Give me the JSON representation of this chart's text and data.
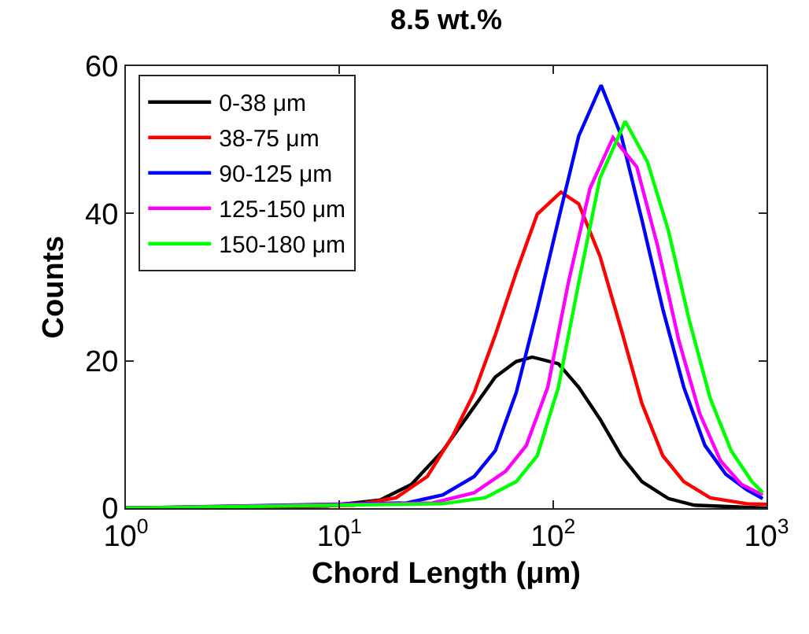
{
  "chart_data": {
    "type": "line",
    "title": "8.5 wt.%",
    "xlabel": "Chord Length (μm)",
    "ylabel": "Counts",
    "log": "x",
    "xlim": [
      1,
      1000
    ],
    "xticks": [
      {
        "value": 1,
        "label": "10$^{0}$"
      },
      {
        "value": 10,
        "label": "10$^{1}$"
      },
      {
        "value": 100,
        "label": "10$^{2}$"
      },
      {
        "value": 1000,
        "label": "10$^{3}$"
      }
    ],
    "ylim": [
      0,
      60
    ],
    "yticks": [
      0,
      20,
      40,
      60
    ],
    "legend": "top left",
    "marker": "none",
    "line_style": "solid",
    "series": [
      {
        "name": "0-38 μm",
        "color": "#000000",
        "x": [
          1,
          8.8,
          15.5,
          21.7,
          30.5,
          40.5,
          53.7,
          67.3,
          80,
          106,
          132,
          166,
          209,
          261,
          347,
          460,
          1000
        ],
        "values": [
          0,
          0.3,
          1.1,
          3.2,
          7.8,
          12.8,
          17.8,
          19.9,
          20.5,
          19.6,
          16.4,
          12.1,
          7.1,
          3.6,
          1.3,
          0.4,
          0
        ]
      },
      {
        "name": "38-75 μm",
        "color": "#ff0000",
        "x": [
          1,
          11.7,
          18.4,
          25.8,
          34.2,
          42.8,
          53.7,
          67.3,
          84.4,
          109,
          132,
          166,
          209,
          261,
          327,
          410,
          545,
          809,
          1000
        ],
        "values": [
          0,
          0.4,
          1.4,
          4.3,
          10,
          15.7,
          23.5,
          32,
          39.9,
          42.9,
          41.3,
          34.2,
          24.2,
          14.2,
          7.1,
          3.6,
          1.4,
          0.6,
          0.5
        ]
      },
      {
        "name": "90-125 μm",
        "color": "#0000ff",
        "x": [
          1,
          20.6,
          30.5,
          42.8,
          53.7,
          67.3,
          84.4,
          106,
          132,
          168,
          209,
          261,
          327,
          410,
          515,
          645,
          809,
          960
        ],
        "values": [
          0,
          0.7,
          1.8,
          4.3,
          7.8,
          15.7,
          27,
          39.1,
          50.5,
          57.4,
          50.5,
          39.1,
          27,
          16.4,
          8.5,
          4.6,
          2.5,
          1.3
        ]
      },
      {
        "name": "125-150 μm",
        "color": "#ff00ff",
        "x": [
          1,
          27.3,
          42.8,
          60,
          75,
          94.5,
          118,
          149,
          191,
          247,
          309,
          388,
          487,
          610,
          764,
          960
        ],
        "values": [
          0,
          0.7,
          2.1,
          5,
          8.5,
          16.4,
          30.6,
          43.4,
          50.3,
          46.3,
          35.6,
          22.8,
          12.8,
          6.4,
          3.2,
          1.8
        ]
      },
      {
        "name": "150-180 μm",
        "color": "#00ff00",
        "x": [
          1,
          30.5,
          48,
          67.3,
          84.4,
          106,
          132,
          166,
          218,
          277,
          347,
          434,
          545,
          683,
          855,
          960
        ],
        "values": [
          0,
          0.6,
          1.4,
          3.6,
          7.1,
          16.4,
          30.6,
          44.8,
          52.5,
          47,
          37.7,
          25.6,
          14.9,
          7.8,
          3.6,
          2.1
        ]
      }
    ]
  }
}
